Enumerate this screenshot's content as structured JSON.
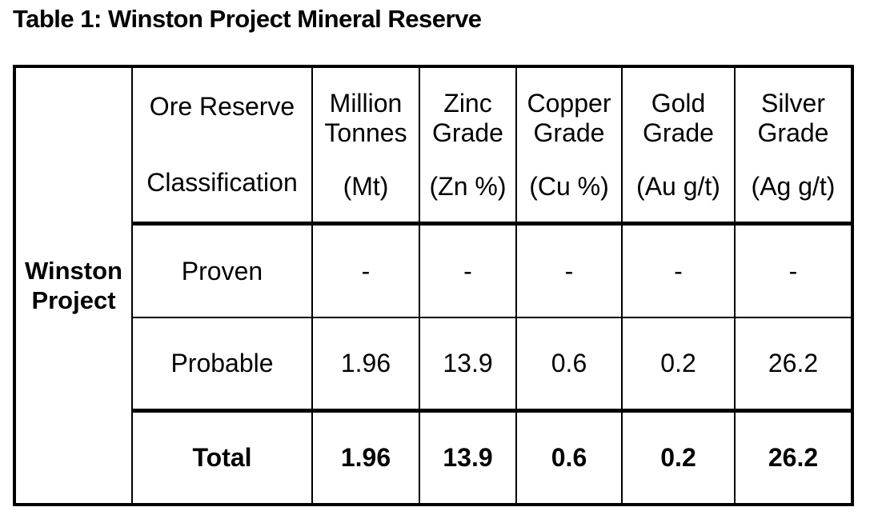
{
  "title": "Table 1: Winston Project Mineral Reserve",
  "table": {
    "project_label_line1": "Winston",
    "project_label_line2": "Project",
    "columns": [
      {
        "main_line1": "Ore Reserve",
        "main_line2": "",
        "unit": "Classification"
      },
      {
        "main_line1": "Million",
        "main_line2": "Tonnes",
        "unit": "(Mt)"
      },
      {
        "main_line1": "Zinc",
        "main_line2": "Grade",
        "unit": "(Zn %)"
      },
      {
        "main_line1": "Copper",
        "main_line2": "Grade",
        "unit": "(Cu %)"
      },
      {
        "main_line1": "Gold",
        "main_line2": "Grade",
        "unit": "(Au g/t)"
      },
      {
        "main_line1": "Silver",
        "main_line2": "Grade",
        "unit": "(Ag g/t)"
      }
    ],
    "rows": [
      {
        "label": "Proven",
        "values": [
          "-",
          "-",
          "-",
          "-",
          "-"
        ]
      },
      {
        "label": "Probable",
        "values": [
          "1.96",
          "13.9",
          "0.6",
          "0.2",
          "26.2"
        ]
      },
      {
        "label": "Total",
        "values": [
          "1.96",
          "13.9",
          "0.6",
          "0.2",
          "26.2"
        ]
      }
    ]
  }
}
